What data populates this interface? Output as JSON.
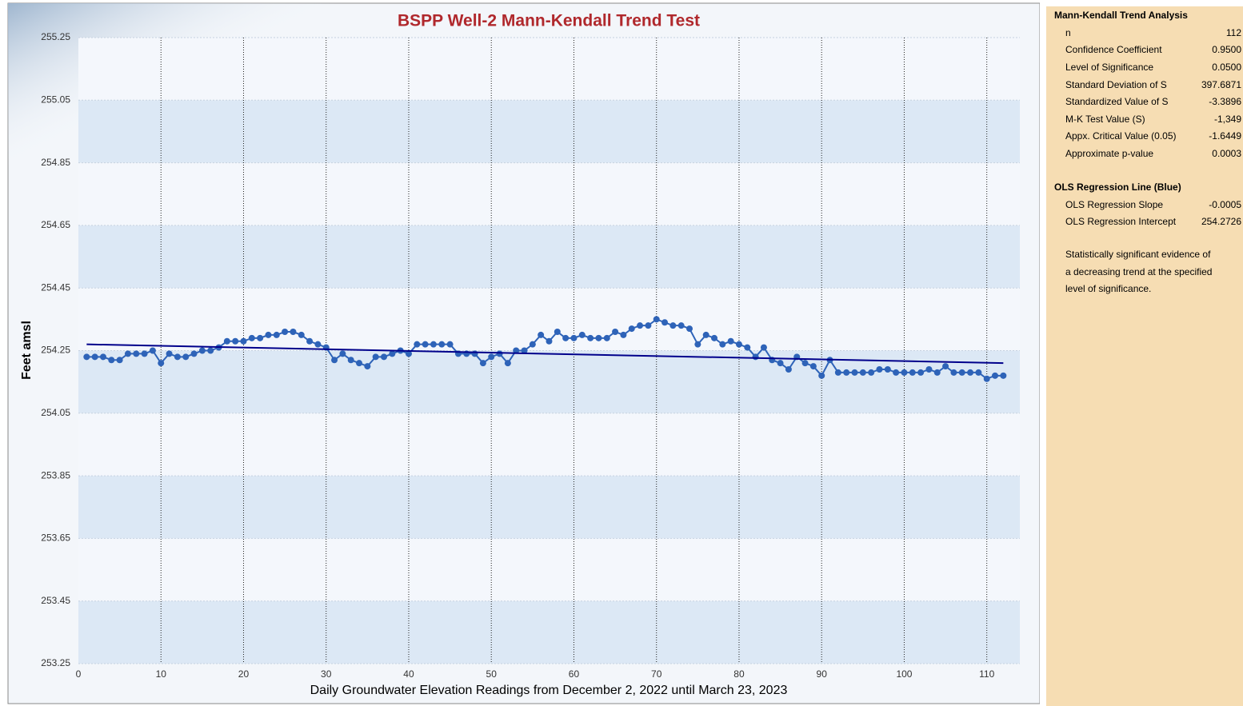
{
  "chart_data": {
    "type": "line",
    "title": "BSPP Well-2 Mann-Kendall Trend Test",
    "xlabel": "Daily Groundwater Elevation Readings from December 2, 2022 until March 23, 2023",
    "ylabel": "Feet amsl",
    "x": [
      1,
      2,
      3,
      4,
      5,
      6,
      7,
      8,
      9,
      10,
      11,
      12,
      13,
      14,
      15,
      16,
      17,
      18,
      19,
      20,
      21,
      22,
      23,
      24,
      25,
      26,
      27,
      28,
      29,
      30,
      31,
      32,
      33,
      34,
      35,
      36,
      37,
      38,
      39,
      40,
      41,
      42,
      43,
      44,
      45,
      46,
      47,
      48,
      49,
      50,
      51,
      52,
      53,
      54,
      55,
      56,
      57,
      58,
      59,
      60,
      61,
      62,
      63,
      64,
      65,
      66,
      67,
      68,
      69,
      70,
      71,
      72,
      73,
      74,
      75,
      76,
      77,
      78,
      79,
      80,
      81,
      82,
      83,
      84,
      85,
      86,
      87,
      88,
      89,
      90,
      91,
      92,
      93,
      94,
      95,
      96,
      97,
      98,
      99,
      100,
      101,
      102,
      103,
      104,
      105,
      106,
      107,
      108,
      109,
      110,
      111,
      112
    ],
    "series": [
      {
        "color": "#2e63b8",
        "values": [
          254.23,
          254.23,
          254.23,
          254.22,
          254.22,
          254.24,
          254.24,
          254.24,
          254.25,
          254.21,
          254.24,
          254.23,
          254.23,
          254.24,
          254.25,
          254.25,
          254.26,
          254.28,
          254.28,
          254.28,
          254.29,
          254.29,
          254.3,
          254.3,
          254.31,
          254.31,
          254.3,
          254.28,
          254.27,
          254.26,
          254.22,
          254.24,
          254.22,
          254.21,
          254.2,
          254.23,
          254.23,
          254.24,
          254.25,
          254.24,
          254.27,
          254.27,
          254.27,
          254.27,
          254.27,
          254.24,
          254.24,
          254.24,
          254.21,
          254.23,
          254.24,
          254.21,
          254.25,
          254.25,
          254.27,
          254.3,
          254.28,
          254.31,
          254.29,
          254.29,
          254.3,
          254.29,
          254.29,
          254.29,
          254.31,
          254.3,
          254.32,
          254.33,
          254.33,
          254.35,
          254.34,
          254.33,
          254.33,
          254.32,
          254.27,
          254.3,
          254.29,
          254.27,
          254.28,
          254.27,
          254.26,
          254.23,
          254.26,
          254.22,
          254.21,
          254.19,
          254.23,
          254.21,
          254.2,
          254.17,
          254.22,
          254.18,
          254.18,
          254.18,
          254.18,
          254.18,
          254.19,
          254.19,
          254.18,
          254.18,
          254.18,
          254.18,
          254.19,
          254.18,
          254.2,
          254.18,
          254.18,
          254.18,
          254.18,
          254.16,
          254.17,
          254.17
        ]
      }
    ],
    "regression": {
      "color": "#00008b",
      "x": [
        1,
        112
      ],
      "values": [
        254.27,
        254.21
      ]
    },
    "xlim": [
      0,
      114
    ],
    "xticks": [
      0,
      10,
      20,
      30,
      40,
      50,
      60,
      70,
      80,
      90,
      100,
      110
    ],
    "ylim": [
      253.25,
      255.25
    ],
    "yticks": [
      253.25,
      253.45,
      253.65,
      253.85,
      254.05,
      254.25,
      254.45,
      254.65,
      254.85,
      255.05,
      255.25
    ],
    "grid": true
  },
  "panel": {
    "sections": [
      {
        "title": "Mann-Kendall Trend Analysis",
        "rows": [
          {
            "label": "n",
            "value": "112"
          },
          {
            "label": "Confidence Coefficient",
            "value": "0.9500"
          },
          {
            "label": "Level of Significance",
            "value": "0.0500"
          },
          {
            "label": "Standard Deviation of S",
            "value": "397.6871"
          },
          {
            "label": "Standardized Value of S",
            "value": "-3.3896"
          },
          {
            "label": "M-K Test Value (S)",
            "value": "-1,349"
          },
          {
            "label": "Appx. Critical Value (0.05)",
            "value": "-1.6449"
          },
          {
            "label": "Approximate p-value",
            "value": "0.0003"
          }
        ]
      },
      {
        "title": "OLS Regression Line (Blue)",
        "rows": [
          {
            "label": "OLS Regression Slope",
            "value": "-0.0005"
          },
          {
            "label": "OLS Regression Intercept",
            "value": "254.2726"
          }
        ]
      }
    ],
    "note": "Statistically significant evidence of a decreasing trend at the specified level of significance."
  }
}
